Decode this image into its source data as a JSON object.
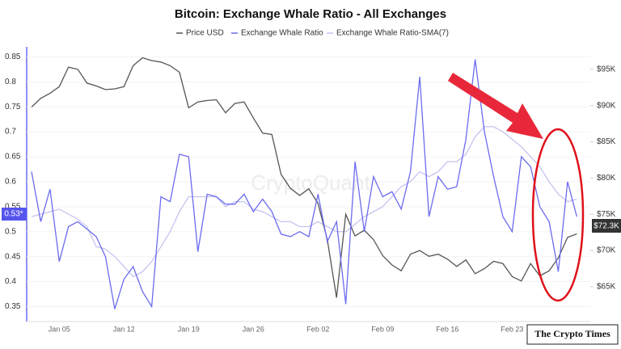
{
  "chart_data": {
    "type": "line",
    "title": "Bitcoin: Exchange Whale Ratio - All Exchanges",
    "watermark": "CryptoQuant",
    "logo": "The Crypto Times",
    "annotations": [
      "0.53*",
      "$72.3K"
    ],
    "categories": [
      null,
      null,
      null,
      "Jan 05",
      null,
      null,
      null,
      null,
      null,
      null,
      "Jan 12",
      null,
      null,
      null,
      null,
      null,
      null,
      "Jan 19",
      null,
      null,
      null,
      null,
      null,
      null,
      "Jan 26",
      null,
      null,
      null,
      null,
      null,
      null,
      "Feb 02",
      null,
      null,
      null,
      null,
      null,
      null,
      "Feb 09",
      null,
      null,
      null,
      null,
      null,
      null,
      "Feb 16",
      null,
      null,
      null,
      null,
      null,
      null,
      "Feb 23",
      null,
      null,
      null,
      null,
      null,
      null,
      null
    ],
    "series": [
      {
        "name": "Price USD",
        "color": "#555555",
        "axis": "y2",
        "values": [
          89800,
          91000,
          91700,
          92600,
          95300,
          95000,
          93100,
          92700,
          92200,
          92300,
          92600,
          95500,
          96600,
          96200,
          96000,
          95500,
          94600,
          89700,
          90500,
          90700,
          90800,
          89000,
          90300,
          90500,
          88300,
          86200,
          86000,
          80500,
          78600,
          77600,
          78500,
          76500,
          71500,
          63500,
          75000,
          72000,
          72800,
          71500,
          69300,
          68000,
          67200,
          69500,
          70000,
          69200,
          69500,
          68800,
          67800,
          68700,
          66800,
          67500,
          68500,
          68200,
          66400,
          65800,
          68200,
          66500,
          67200,
          69000,
          71800,
          72300
        ]
      },
      {
        "name": "Exchange Whale Ratio",
        "color": "#6b6bef",
        "values": [
          0.62,
          0.52,
          0.585,
          0.44,
          0.51,
          0.52,
          0.505,
          0.49,
          0.45,
          0.345,
          0.405,
          0.43,
          0.38,
          0.35,
          0.57,
          0.56,
          0.655,
          0.65,
          0.46,
          0.575,
          0.57,
          0.555,
          0.555,
          0.575,
          0.54,
          0.565,
          0.54,
          0.495,
          0.49,
          0.5,
          0.49,
          0.575,
          0.48,
          0.52,
          0.355,
          0.64,
          0.5,
          0.61,
          0.57,
          0.58,
          0.545,
          0.62,
          0.81,
          0.53,
          0.61,
          0.585,
          0.59,
          0.685,
          0.845,
          0.7,
          0.61,
          0.53,
          0.5,
          0.65,
          0.63,
          0.55,
          0.52,
          0.42,
          0.6,
          0.53
        ]
      },
      {
        "name": "Exchange Whale Ratio-SMA(7)",
        "color": "#c4c4f2",
        "values": [
          0.53,
          0.535,
          0.54,
          0.545,
          0.535,
          0.525,
          0.51,
          0.47,
          0.465,
          0.45,
          0.43,
          0.41,
          0.42,
          0.44,
          0.47,
          0.5,
          0.54,
          0.57,
          0.57,
          0.57,
          0.57,
          0.55,
          0.56,
          0.56,
          0.545,
          0.54,
          0.53,
          0.52,
          0.52,
          0.51,
          0.51,
          0.52,
          0.51,
          0.5,
          0.5,
          0.515,
          0.53,
          0.54,
          0.55,
          0.57,
          0.59,
          0.6,
          0.62,
          0.61,
          0.62,
          0.64,
          0.64,
          0.655,
          0.69,
          0.71,
          0.71,
          0.7,
          0.685,
          0.67,
          0.65,
          0.63,
          0.6,
          0.575,
          0.56,
          0.565
        ]
      }
    ],
    "ylim": [
      0.32,
      0.87
    ],
    "yticks": [
      0.35,
      0.4,
      0.45,
      0.5,
      0.55,
      0.6,
      0.65,
      0.7,
      0.75,
      0.8,
      0.85
    ],
    "y2lim": [
      60200,
      98100
    ],
    "y2ticks": [
      {
        "value": 65000,
        "label": "$65K"
      },
      {
        "value": 70000,
        "label": "$70K"
      },
      {
        "value": 75000,
        "label": "$75K"
      },
      {
        "value": 80000,
        "label": "$80K"
      },
      {
        "value": 85000,
        "label": "$85K"
      },
      {
        "value": 90000,
        "label": "$90K"
      },
      {
        "value": 95000,
        "label": "$95K"
      }
    ],
    "grid": true
  }
}
